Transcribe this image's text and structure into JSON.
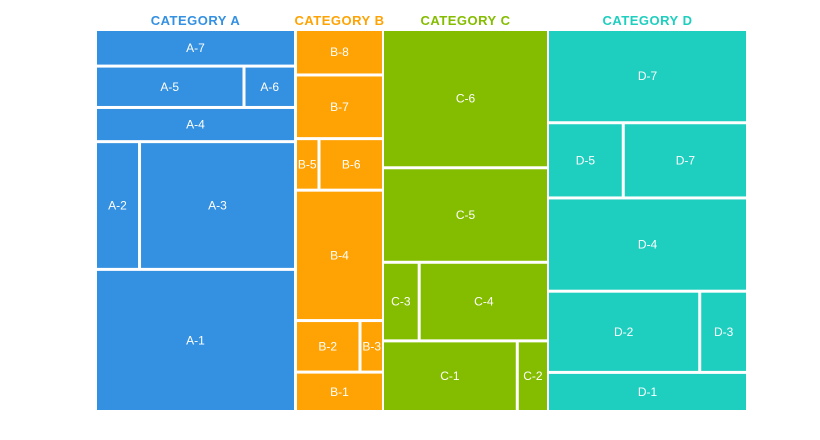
{
  "chart_data": {
    "type": "treemap",
    "groups": [
      {
        "name": "CATEGORY A",
        "color": "#3490e0",
        "items": [
          {
            "label": "A-7",
            "value": 1.4
          },
          {
            "label": "A-5",
            "value": 1.2
          },
          {
            "label": "A-6",
            "value": 0.4
          },
          {
            "label": "A-4",
            "value": 1.3
          },
          {
            "label": "A-2",
            "value": 1.1
          },
          {
            "label": "A-3",
            "value": 4.1
          },
          {
            "label": "A-1",
            "value": 5.8
          }
        ]
      },
      {
        "name": "CATEGORY B",
        "color": "#ffa305",
        "items": [
          {
            "label": "B-8",
            "value": 0.7
          },
          {
            "label": "B-7",
            "value": 1.0
          },
          {
            "label": "B-5",
            "value": 0.2
          },
          {
            "label": "B-6",
            "value": 0.6
          },
          {
            "label": "B-4",
            "value": 2.1
          },
          {
            "label": "B-2",
            "value": 0.6
          },
          {
            "label": "B-3",
            "value": 0.2
          },
          {
            "label": "B-1",
            "value": 0.6
          }
        ]
      },
      {
        "name": "CATEGORY C",
        "color": "#84bd00",
        "items": [
          {
            "label": "C-6",
            "value": 3.4
          },
          {
            "label": "C-5",
            "value": 2.3
          },
          {
            "label": "C-3",
            "value": 0.4
          },
          {
            "label": "C-4",
            "value": 1.5
          },
          {
            "label": "C-1",
            "value": 1.4
          },
          {
            "label": "C-2",
            "value": 0.3
          }
        ]
      },
      {
        "name": "CATEGORY D",
        "color": "#1ecfbf",
        "items": [
          {
            "label": "D-7",
            "value": 3.0
          },
          {
            "label": "D-5",
            "value": 0.9
          },
          {
            "label": "D-7",
            "value": 1.5
          },
          {
            "label": "D-4",
            "value": 3.0
          },
          {
            "label": "D-2",
            "value": 2.0
          },
          {
            "label": "D-3",
            "value": 0.6
          },
          {
            "label": "D-1",
            "value": 1.2
          }
        ]
      }
    ]
  }
}
